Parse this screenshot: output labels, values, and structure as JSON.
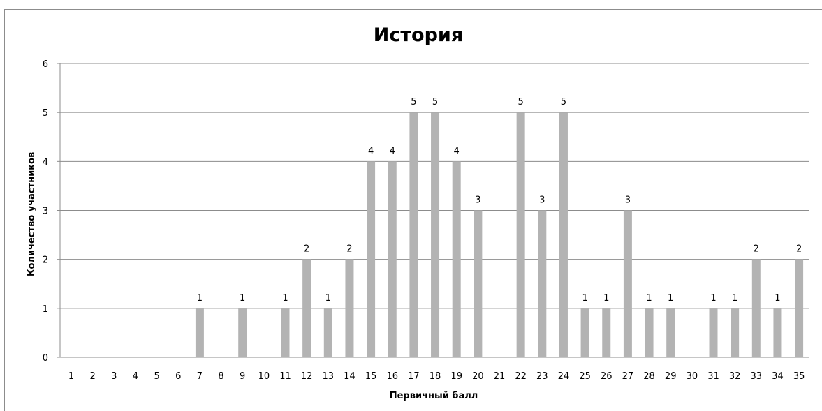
{
  "chart_data": {
    "type": "bar",
    "title": "История",
    "xlabel": "Первичный балл",
    "ylabel": "Количество участников",
    "ylim": [
      0,
      6
    ],
    "yticks": [
      0,
      1,
      2,
      3,
      4,
      5,
      6
    ],
    "grid": true,
    "legend": "none",
    "bar_color": "#b3b3b3",
    "grid_color": "#8c8c8c",
    "categories": [
      "1",
      "2",
      "3",
      "4",
      "5",
      "6",
      "7",
      "8",
      "9",
      "10",
      "11",
      "12",
      "13",
      "14",
      "15",
      "16",
      "17",
      "18",
      "19",
      "20",
      "21",
      "22",
      "23",
      "24",
      "25",
      "26",
      "27",
      "28",
      "29",
      "30",
      "31",
      "32",
      "33",
      "34",
      "35"
    ],
    "values": [
      0,
      0,
      0,
      0,
      0,
      0,
      1,
      0,
      1,
      0,
      1,
      2,
      1,
      2,
      4,
      4,
      5,
      5,
      4,
      3,
      0,
      5,
      3,
      5,
      1,
      1,
      3,
      1,
      1,
      0,
      1,
      1,
      2,
      1,
      2
    ]
  }
}
